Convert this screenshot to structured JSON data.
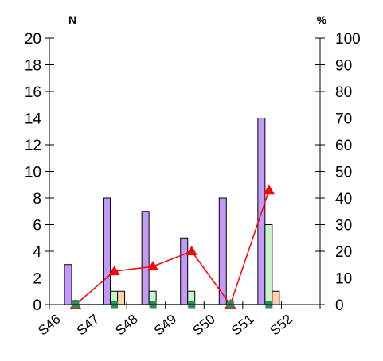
{
  "chart_data": {
    "type": "bar",
    "left_axis_title": "N",
    "right_axis_title": "%",
    "categories": [
      "S46",
      "S47",
      "S48",
      "S49",
      "S50",
      "S51",
      "S52"
    ],
    "left_ylim": [
      0,
      20
    ],
    "left_ticks": [
      "0",
      "2",
      "4",
      "6",
      "8",
      "10",
      "12",
      "14",
      "16",
      "18",
      "20"
    ],
    "right_ylim": [
      0,
      100
    ],
    "right_ticks": [
      "0",
      "10",
      "20",
      "30",
      "40",
      "50",
      "60",
      "70",
      "80",
      "90",
      "100"
    ],
    "grid": false,
    "bar_series": [
      {
        "color": "#c39af7",
        "values": [
          3,
          8,
          7,
          5,
          8,
          14,
          0
        ]
      },
      {
        "color": "#c8f5c8",
        "values": [
          0.3,
          1,
          1,
          1,
          0,
          6,
          0
        ]
      },
      {
        "color": "#fcd3a8",
        "values": [
          0,
          1,
          0,
          0,
          0,
          1,
          0
        ]
      }
    ],
    "line_series": [
      {
        "color": "#ff0000",
        "marker": "triangle",
        "axis": "right",
        "values": [
          0,
          12.5,
          14.3,
          20,
          0,
          42.9
        ]
      },
      {
        "color": "#2e8b57",
        "marker": "square",
        "axis": "right",
        "values": [
          0,
          0,
          0,
          0,
          0,
          0
        ]
      }
    ]
  }
}
